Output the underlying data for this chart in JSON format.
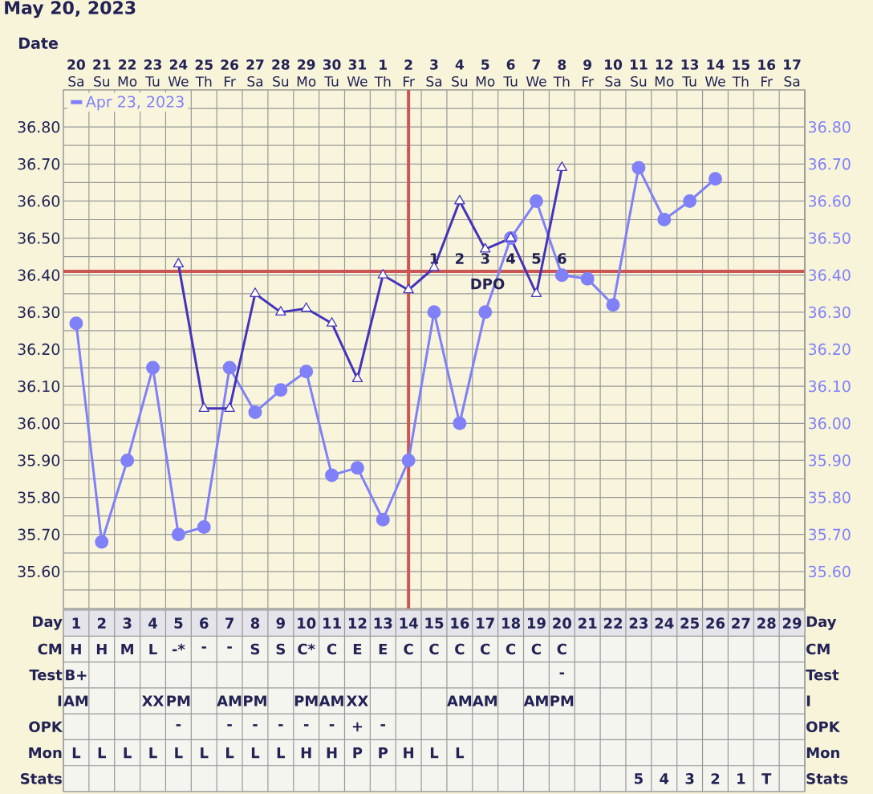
{
  "chart_data": [
    {
      "type": "line",
      "title": "May 20, 2023",
      "xlabel": "Date",
      "categories": [
        "**20** Sa",
        "**21** Su",
        "**22** Mo",
        "**23** Tu",
        "**24** We",
        "**25** Th",
        "**26** Fr",
        "**27** Sa",
        "**28** Su",
        "**29** Mo",
        "**30** Tu",
        "**31** We",
        "**1** Th",
        "**2** Fr",
        "**3** Sa",
        "**4** Su",
        "**5** Mo",
        "**6** Tu",
        "**7** We",
        "**8** Th",
        "**9** Fr",
        "**10** Sa",
        "**11** Su",
        "**12** Mo",
        "**13** Tu",
        "**14** We",
        "**15** Th",
        "**16** Fr",
        "**17** Sa"
      ],
      "series": [
        {
          "name": "Apr 23, 2023",
          "color": "#8080f8",
          "marker": "circle",
          "values": [
            36.27,
            35.68,
            35.9,
            36.15,
            35.7,
            35.72,
            36.15,
            36.03,
            36.09,
            36.14,
            35.86,
            35.88,
            35.74,
            35.9,
            36.3,
            36.0,
            36.3,
            36.5,
            36.6,
            36.4,
            36.39,
            36.32,
            36.69,
            36.55,
            36.6,
            36.66,
            null,
            null,
            null
          ]
        },
        {
          "color": "#4433bb",
          "marker": "triangle",
          "values": [
            null,
            null,
            null,
            null,
            36.43,
            36.04,
            36.04,
            36.35,
            36.3,
            36.31,
            36.27,
            36.12,
            36.4,
            36.36,
            36.42,
            36.6,
            36.47,
            36.5,
            36.35,
            36.69,
            null,
            null,
            null,
            null,
            null,
            null,
            null,
            null,
            null
          ]
        }
      ],
      "ylim": [
        35.5,
        36.9
      ],
      "yticks": [
        {
          "value": 35.6,
          "label": "35.60"
        },
        {
          "value": 35.7,
          "label": "35.70"
        },
        {
          "value": 35.8,
          "label": "35.80"
        },
        {
          "value": 35.9,
          "label": "35.90"
        },
        {
          "value": 36.0,
          "label": "36.00"
        },
        {
          "value": 36.1,
          "label": "36.10"
        },
        {
          "value": 36.2,
          "label": "36.20"
        },
        {
          "value": 36.3,
          "label": "36.30"
        },
        {
          "value": 36.4,
          "label": "36.40"
        },
        {
          "value": 36.5,
          "label": "36.50"
        },
        {
          "value": 36.6,
          "label": "36.60"
        },
        {
          "value": 36.7,
          "label": "36.70"
        },
        {
          "value": 36.8,
          "label": "36.80"
        }
      ],
      "y2lim": [
        35.5,
        36.9
      ],
      "y2ticks": [
        {
          "value": 35.6,
          "label": "35.60"
        },
        {
          "value": 35.7,
          "label": "35.70"
        },
        {
          "value": 35.8,
          "label": "35.80"
        },
        {
          "value": 35.9,
          "label": "35.90"
        },
        {
          "value": 36.0,
          "label": "36.00"
        },
        {
          "value": 36.1,
          "label": "36.10"
        },
        {
          "value": 36.2,
          "label": "36.20"
        },
        {
          "value": 36.3,
          "label": "36.30"
        },
        {
          "value": 36.4,
          "label": "36.40"
        },
        {
          "value": 36.5,
          "label": "36.50"
        },
        {
          "value": 36.6,
          "label": "36.60"
        },
        {
          "value": 36.7,
          "label": "36.70"
        },
        {
          "value": 36.8,
          "label": "36.80"
        }
      ],
      "ref_lines": [
        {
          "axis": "y",
          "value": 36.41,
          "color": "#cc5555"
        },
        {
          "axis": "x",
          "value": "**2** Fr",
          "color": "#cc5555"
        }
      ],
      "annotations": [
        "1",
        "2",
        "3",
        "4",
        "5",
        "6",
        "DPO"
      ],
      "grid": true,
      "legend": "top left"
    },
    {
      "type": "heatmap",
      "xlabel": "Day",
      "categories": [
        "1",
        "2",
        "3",
        "4",
        "5",
        "6",
        "7",
        "8",
        "9",
        "10",
        "11",
        "12",
        "13",
        "14",
        "15",
        "16",
        "17",
        "18",
        "19",
        "20",
        "21",
        "22",
        "23",
        "24",
        "25",
        "26",
        "27",
        "28",
        "29"
      ],
      "y_categories": [
        "CM",
        "Test",
        "I",
        "OPK",
        "Mon",
        "Stats"
      ],
      "y2_categories": [
        "CM",
        "Test",
        "I",
        "OPK",
        "Mon",
        "Stats"
      ],
      "cells": [
        [
          null,
          null,
          null,
          null,
          null,
          null,
          null,
          null,
          null,
          null,
          null,
          null,
          null,
          null,
          null,
          null,
          null,
          null,
          null,
          null,
          null,
          null,
          null,
          null,
          null,
          null,
          null,
          null,
          null
        ],
        [
          null,
          null,
          null,
          null,
          null,
          null,
          null,
          null,
          null,
          null,
          null,
          null,
          null,
          null,
          null,
          null,
          null,
          null,
          null,
          null,
          null,
          null,
          null,
          null,
          null,
          null,
          null,
          null,
          null
        ],
        [
          null,
          null,
          null,
          null,
          null,
          null,
          null,
          null,
          null,
          null,
          null,
          null,
          null,
          null,
          null,
          null,
          null,
          null,
          null,
          null,
          null,
          null,
          null,
          null,
          null,
          null,
          null,
          null,
          null
        ],
        [
          null,
          null,
          null,
          null,
          null,
          null,
          null,
          null,
          null,
          null,
          null,
          null,
          null,
          null,
          null,
          null,
          null,
          null,
          null,
          null,
          null,
          null,
          null,
          null,
          null,
          null,
          null,
          null,
          null
        ],
        [
          null,
          null,
          null,
          null,
          null,
          null,
          null,
          null,
          null,
          null,
          null,
          null,
          null,
          null,
          null,
          null,
          null,
          null,
          null,
          null,
          null,
          null,
          null,
          null,
          null,
          null,
          null,
          null,
          null
        ],
        [
          null,
          null,
          null,
          null,
          null,
          null,
          null,
          null,
          null,
          null,
          null,
          null,
          null,
          null,
          null,
          null,
          null,
          null,
          null,
          null,
          null,
          null,
          null,
          null,
          null,
          null,
          null,
          null,
          null
        ]
      ],
      "cell_labels": [
        [
          "H",
          "H",
          "M",
          "L",
          "-*",
          "-",
          "-",
          "S",
          "S",
          "C*",
          "C",
          "E",
          "E",
          "C",
          "C",
          "C",
          "C",
          "C",
          "C",
          "C",
          null,
          null,
          null,
          null,
          null,
          null,
          null,
          null,
          null
        ],
        [
          "B+",
          null,
          null,
          null,
          null,
          null,
          null,
          null,
          null,
          null,
          null,
          null,
          null,
          null,
          null,
          null,
          null,
          null,
          null,
          "-",
          null,
          null,
          null,
          null,
          null,
          null,
          null,
          null,
          null
        ],
        [
          "AM",
          null,
          null,
          "XX",
          "PM",
          null,
          "AM",
          "PM",
          null,
          "PM",
          "AM",
          "XX",
          null,
          null,
          null,
          "AM",
          "AM",
          null,
          "AM",
          "PM",
          null,
          null,
          null,
          null,
          null,
          null,
          null,
          null,
          null
        ],
        [
          null,
          null,
          null,
          null,
          "-",
          null,
          "-",
          "-",
          "-",
          "-",
          "-",
          "+",
          "-",
          null,
          null,
          null,
          null,
          null,
          null,
          null,
          null,
          null,
          null,
          null,
          null,
          null,
          null,
          null,
          null
        ],
        [
          "L",
          "L",
          "L",
          "L",
          "L",
          "L",
          "L",
          "L",
          "L",
          "H",
          "H",
          "P",
          "P",
          "H",
          "L",
          "L",
          null,
          null,
          null,
          null,
          null,
          null,
          null,
          null,
          null,
          null,
          null,
          null,
          null
        ],
        [
          null,
          null,
          null,
          null,
          null,
          null,
          null,
          null,
          null,
          null,
          null,
          null,
          null,
          null,
          null,
          null,
          null,
          null,
          null,
          null,
          null,
          null,
          "5",
          "4",
          "3",
          "2",
          "1",
          "T",
          null
        ]
      ]
    }
  ]
}
